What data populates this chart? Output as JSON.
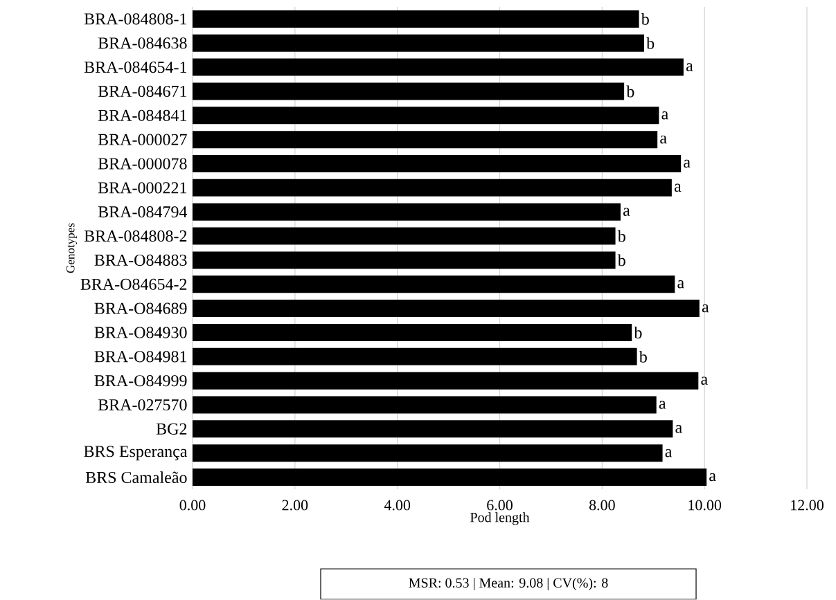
{
  "chart_data": {
    "type": "bar",
    "orientation": "horizontal",
    "xlabel": "Pod length",
    "ylabel": "Genotypes",
    "categories": [
      "BRA-084808-1",
      "BRA-084638",
      "BRA-084654-1",
      "BRA-084671",
      "BRA-084841",
      "BRA-000027",
      "BRA-000078",
      "BRA-000221",
      "BRA-084794",
      "BRA-084808-2",
      "BRA-O84883",
      "BRA-O84654-2",
      "BRA-O84689",
      "BRA-O84930",
      "BRA-O84981",
      "BRA-O84999",
      "BRA-027570",
      "BG2",
      "BRS Esperança",
      "BRS Camaleão"
    ],
    "values": [
      8.72,
      8.82,
      9.59,
      8.43,
      9.11,
      9.08,
      9.54,
      9.36,
      8.36,
      8.26,
      8.26,
      9.42,
      9.9,
      8.58,
      8.68,
      9.88,
      9.06,
      9.38,
      9.18,
      10.04
    ],
    "value_labels": [
      "b",
      "b",
      "a",
      "b",
      "a",
      "a",
      "a",
      "a",
      "a",
      "b",
      "b",
      "a",
      "a",
      "b",
      "b",
      "a",
      "a",
      "a",
      "a",
      "a"
    ],
    "color": "#000000",
    "xlim": [
      0,
      12
    ],
    "xticks": [
      {
        "value": 0,
        "label": "0.00"
      },
      {
        "value": 2,
        "label": "2.00"
      },
      {
        "value": 4,
        "label": "4.00"
      },
      {
        "value": 6,
        "label": "6.00"
      },
      {
        "value": 8,
        "label": "8.00"
      },
      {
        "value": 10,
        "label": "10.00"
      },
      {
        "value": 12,
        "label": "12.00"
      }
    ],
    "grid": "x",
    "annotations": [
      "MSR:  0.53 |   Mean: 9.08 | CV(%): 8"
    ]
  }
}
